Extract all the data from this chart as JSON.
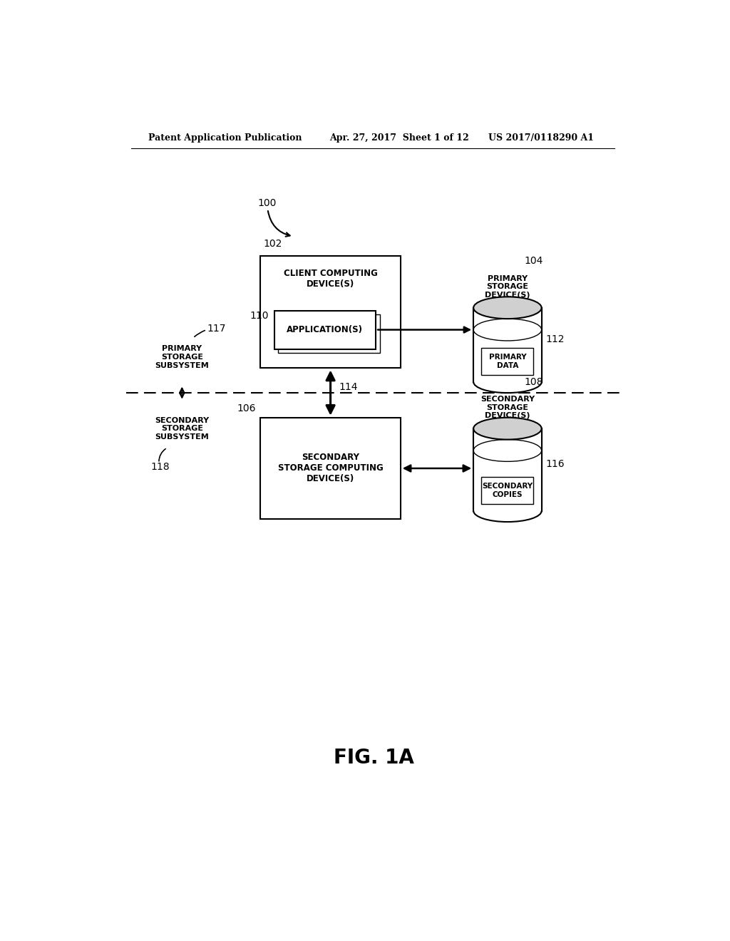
{
  "bg_color": "#ffffff",
  "header_left": "Patent Application Publication",
  "header_mid": "Apr. 27, 2017  Sheet 1 of 12",
  "header_right": "US 2017/0118290 A1",
  "fig_label": "FIG. 1A",
  "label_100": "100",
  "label_102": "102",
  "label_104": "104",
  "label_106": "106",
  "label_108": "108",
  "label_110": "110",
  "label_112": "112",
  "label_114": "114",
  "label_116": "116",
  "label_117": "117",
  "label_118": "118",
  "box_102_text": "CLIENT COMPUTING\nDEVICE(S)",
  "box_110_text": "APPLICATION(S)",
  "box_106_text": "SECONDARY\nSTORAGE COMPUTING\nDEVICE(S)",
  "cyl_104_top_text": "PRIMARY\nSTORAGE\nDEVICE(S)",
  "cyl_104_inner_text": "PRIMARY\nDATA",
  "cyl_108_top_text": "SECONDARY\nSTORAGE\nDEVICE(S)",
  "cyl_108_inner_text": "SECONDARY\nCOPIES",
  "primary_subsys_text": "PRIMARY\nSTORAGE\nSUBSYSTEM",
  "secondary_subsys_text": "SECONDARY\nSTORAGE\nSUBSYSTEM",
  "line_color": "#000000",
  "text_color": "#000000",
  "page_width": 10.24,
  "page_height": 13.2
}
